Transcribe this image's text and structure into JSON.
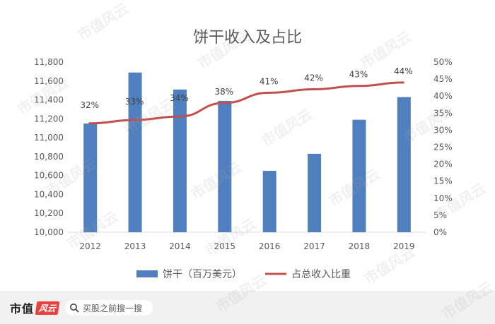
{
  "chart_data": {
    "type": "bar",
    "title": "饼干收入及占比",
    "categories": [
      "2012",
      "2013",
      "2014",
      "2015",
      "2016",
      "2017",
      "2018",
      "2019"
    ],
    "series": [
      {
        "name": "饼干（百万美元）",
        "type": "bar",
        "axis": "left",
        "color": "#4f7fbe",
        "values": [
          11150,
          11690,
          11510,
          11390,
          10650,
          10830,
          11190,
          11430
        ]
      },
      {
        "name": "占总收入比重",
        "type": "line",
        "axis": "right",
        "color": "#c0504d",
        "values": [
          32,
          33,
          34,
          38,
          41,
          42,
          43,
          44
        ],
        "data_labels": [
          "32%",
          "33%",
          "34%",
          "38%",
          "41%",
          "42%",
          "43%",
          "44%"
        ]
      }
    ],
    "y_left": {
      "min": 10000,
      "max": 11800,
      "ticks": [
        "10,000",
        "10,200",
        "10,400",
        "10,600",
        "10,800",
        "11,000",
        "11,200",
        "11,400",
        "11,600",
        "11,800"
      ]
    },
    "y_right": {
      "min": 0,
      "max": 50,
      "ticks": [
        "0%",
        "5%",
        "10%",
        "15%",
        "20%",
        "25%",
        "30%",
        "35%",
        "40%",
        "45%",
        "50%"
      ]
    },
    "grid": false,
    "legend_position": "bottom"
  },
  "footer": {
    "brand": "市值",
    "brand_logo": "风云",
    "search_icon": "search-icon",
    "search_placeholder": "买股之前搜一搜"
  },
  "watermark": "市值风云"
}
